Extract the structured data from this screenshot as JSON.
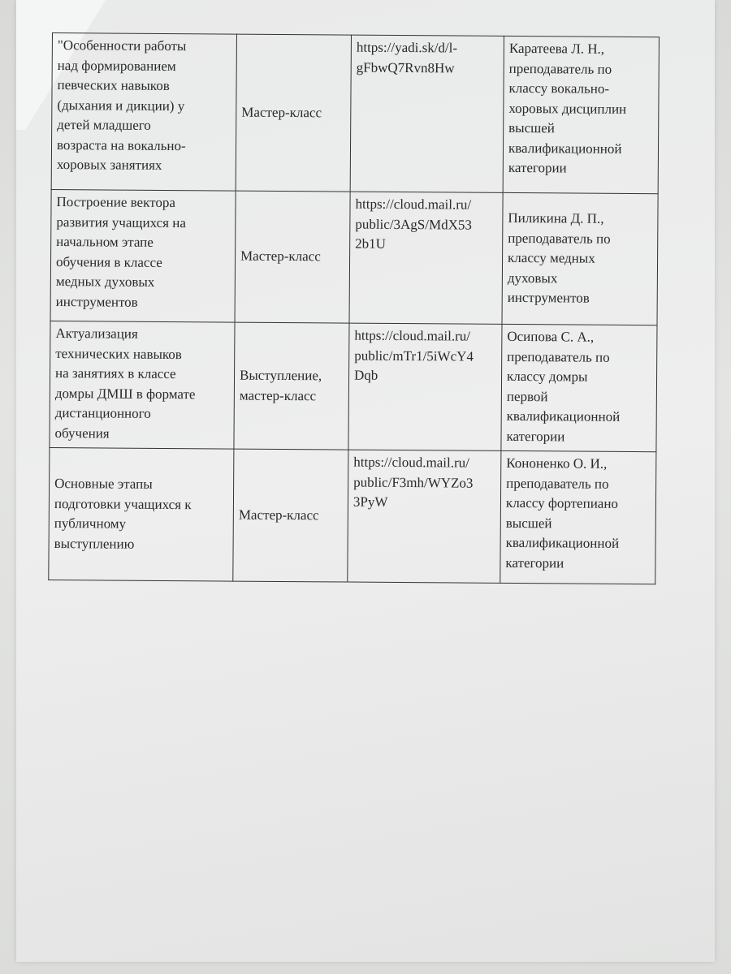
{
  "table": {
    "rows": [
      {
        "topic": "\"Особенности работы\nнад формированием\nпевческих навыков\n(дыхания и дикции) у\nдетей младшего\nвозраста на вокально-\nхоровых занятиях",
        "format": "Мастер-класс",
        "link": "https://yadi.sk/d/l-\ngFbwQ7Rvn8Hw",
        "author": "Каратеева Л. Н.,\nпреподаватель по\nклассу вокально-\nхоровых дисциплин\nвысшей\nквалификационной\nкатегории"
      },
      {
        "topic": "Построение вектора\nразвития учащихся на\nначальном этапе\nобучения в классе\nмедных духовых\nинструментов",
        "format": "Мастер-класс",
        "link": "https://cloud.mail.ru/\npublic/3AgS/MdX53\n2b1U",
        "author": "Пиликина Д. П.,\nпреподаватель по\nклассу медных\nдуховых\nинструментов"
      },
      {
        "topic": "Актуализация\nтехнических навыков\nна занятиях в классе\nдомры ДМШ в формате\nдистанционного\nобучения",
        "format": "Выступление,\nмастер-класс",
        "link": "https://cloud.mail.ru/\npublic/mTr1/5iWcY4\nDqb",
        "author": "Осипова С. А.,\nпреподаватель по\nклассу домры\nпервой\nквалификационной\nкатегории"
      },
      {
        "topic": "Основные этапы\nподготовки учащихся к\nпубличному\nвыступлению",
        "format": "Мастер-класс",
        "link": "https://cloud.mail.ru/\npublic/F3mh/WYZo3\n3PyW",
        "author": "Кононенко О. И.,\nпреподаватель по\nклассу фортепиано\nвысшей\nквалификационной\nкатегории"
      }
    ]
  }
}
